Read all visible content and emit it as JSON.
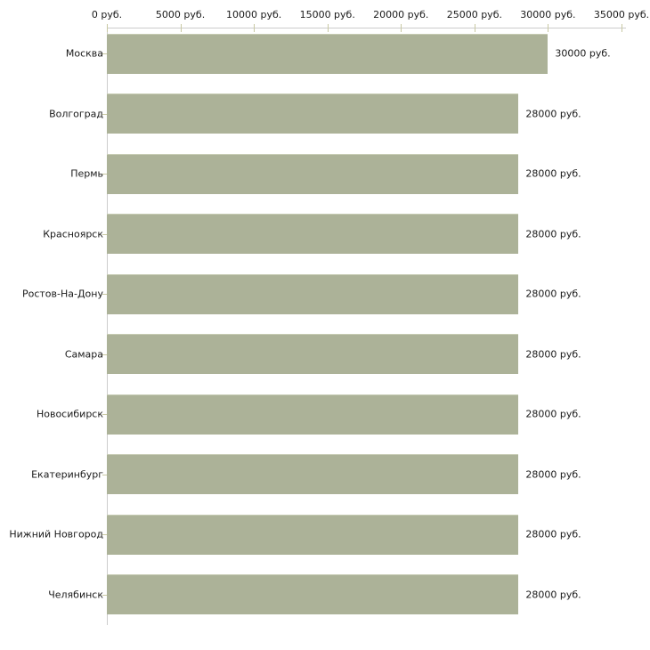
{
  "chart_data": {
    "type": "bar",
    "orientation": "horizontal",
    "title": "",
    "xlabel": "",
    "ylabel": "",
    "grid": false,
    "legend": false,
    "categories": [
      "Москва",
      "Волгоград",
      "Пермь",
      "Красноярск",
      "Ростов-На-Дону",
      "Самара",
      "Новосибирск",
      "Екатеринбург",
      "Нижний Новгород",
      "Челябинск"
    ],
    "values": [
      30000,
      28000,
      28000,
      28000,
      28000,
      28000,
      28000,
      28000,
      28000,
      28000
    ],
    "bar_labels": [
      "30000 руб.",
      "28000 руб.",
      "28000 руб.",
      "28000 руб.",
      "28000 руб.",
      "28000 руб.",
      "28000 руб.",
      "28000 руб.",
      "28000 руб.",
      "28000 руб."
    ],
    "x_axis": {
      "position": "top",
      "max": 35000,
      "ticks": [
        0,
        5000,
        10000,
        15000,
        20000,
        25000,
        30000,
        35000
      ],
      "tick_labels": [
        "0 руб.",
        "5000 руб.",
        "10000 руб.",
        "15000 руб.",
        "20000 руб.",
        "25000 руб.",
        "30000 руб.",
        "35000 руб."
      ]
    },
    "xlim": [
      0,
      35000
    ],
    "colors": {
      "background": "#ffffff",
      "bar": "#acb298",
      "bar_top_edge": "#c6cbb3",
      "axis_line": "#cccccc",
      "tick": "#c9c9a3",
      "text": "#1a1a1a"
    }
  }
}
